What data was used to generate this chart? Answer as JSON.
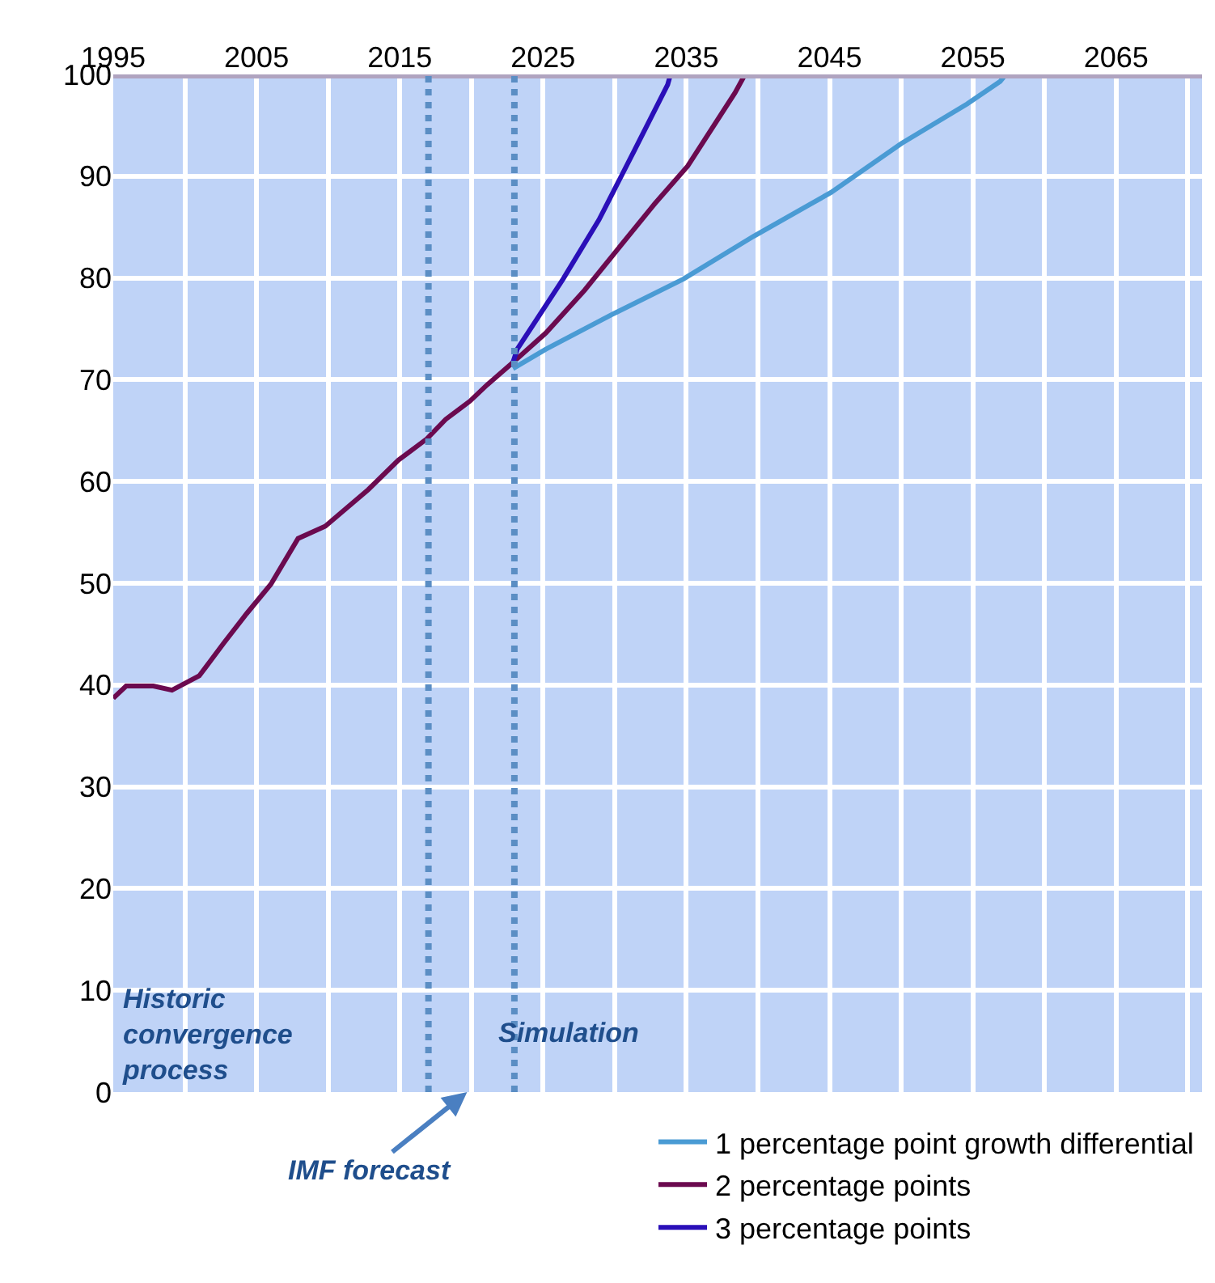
{
  "chart_data": {
    "type": "line",
    "x": [
      1995,
      1995.9,
      1997.8,
      1999.1,
      2001.0,
      2002.7,
      2004.3,
      2006.0,
      2007.9,
      2009.8,
      2012.8,
      2014.9,
      2016.9,
      2018.2,
      2019.9,
      2021.1,
      2022.9,
      2025.2,
      2027.9,
      2030.2,
      2032.8,
      2035.1,
      2038.4,
      2039.1
    ],
    "series": [
      {
        "name": "1 percentage point growth differential",
        "color": "#4a9bd4",
        "x": [
          2022.9,
          2025.2,
          2029.8,
          2034.8,
          2039.7,
          2045.1,
          2050.0,
          2054.6,
          2056.9,
          2057.3
        ],
        "values": [
          71.1,
          73.0,
          76.4,
          79.9,
          84.1,
          88.4,
          93.2,
          97.1,
          99.3,
          100
        ]
      },
      {
        "name": "2 percentage points",
        "color": "#6b0a4f",
        "values": [
          38.7,
          39.9,
          39.9,
          39.5,
          40.9,
          44.1,
          47.0,
          49.9,
          54.4,
          55.6,
          59.2,
          62.1,
          64.2,
          66.1,
          67.9,
          69.5,
          71.7,
          74.6,
          78.8,
          82.8,
          87.3,
          91.0,
          98.2,
          100
        ]
      },
      {
        "name": "3 percentage points",
        "color": "#2a0fb8",
        "x": [
          2022.9,
          2023.2,
          2026.4,
          2028.9,
          2031.4,
          2033.7,
          2033.9
        ],
        "values": [
          71.7,
          73.0,
          79.9,
          85.7,
          92.6,
          99.0,
          100
        ]
      }
    ],
    "xlim": [
      1995,
      2071
    ],
    "ylim": [
      0,
      100
    ],
    "xticks": [
      1995,
      {
        "value": 2000,
        "label": null
      },
      2005,
      {
        "value": 2010,
        "label": null
      },
      2015,
      {
        "value": 2020,
        "label": null
      },
      2025,
      {
        "value": 2030,
        "label": null
      },
      2035,
      {
        "value": 2040,
        "label": null
      },
      2045,
      {
        "value": 2050,
        "label": null
      },
      2055,
      {
        "value": 2060,
        "label": null
      },
      2065,
      {
        "value": 2070,
        "label": null
      }
    ],
    "yticks": [
      0,
      10,
      20,
      30,
      40,
      50,
      60,
      70,
      80,
      90,
      100
    ],
    "grid": true,
    "legend": "bottom right",
    "marker": "none",
    "line_style": "solid",
    "ref_lines": [
      {
        "axis": "x",
        "value": 2017,
        "color": "#5b8ec4",
        "line_style": "dotted"
      },
      {
        "axis": "x",
        "value": 2023,
        "color": "#5b8ec4",
        "line_style": "dotted"
      }
    ],
    "annotations": [
      "Historic\nconvergence\nprocess",
      "Simulation",
      "IMF forecast"
    ]
  }
}
